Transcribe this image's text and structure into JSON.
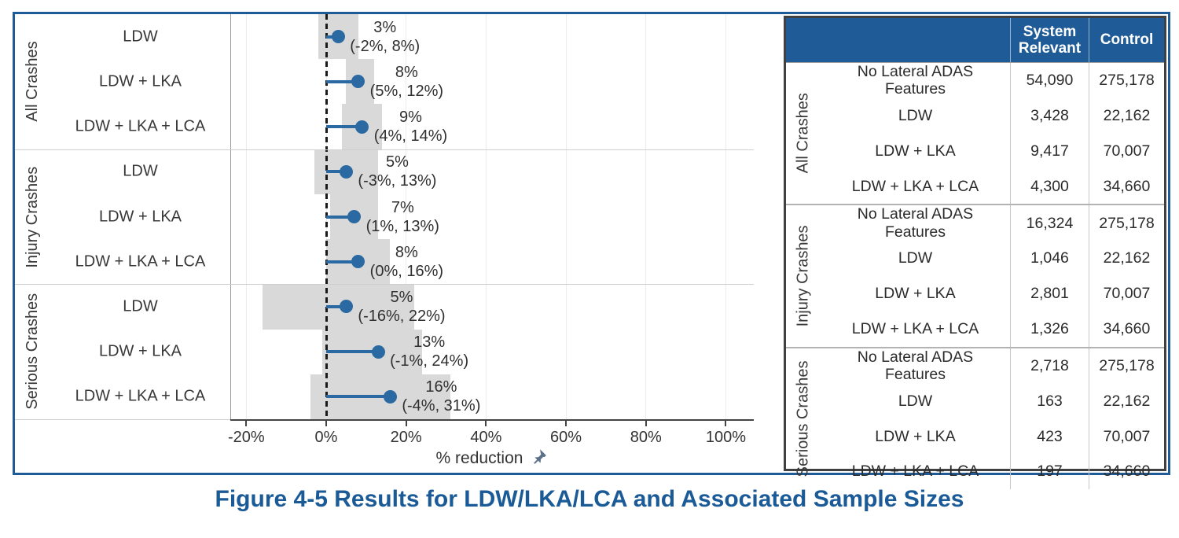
{
  "caption": "Figure 4-5 Results for LDW/LKA/LCA and Associated Sample Sizes",
  "colors": {
    "accent_blue": "#1f5b96",
    "point_blue": "#2a69a1",
    "band_gray": "#d9d9d9",
    "caption_blue": "#1a5a96",
    "pin_slate": "#5c7089"
  },
  "icons": {
    "axis_label_pin": "pushpin-icon"
  },
  "chart_data": {
    "type": "scatter",
    "subtype": "forest-plot-dot-with-ci-bands",
    "xlabel": "% reduction",
    "xlim": [
      -24,
      107
    ],
    "zero_line": 0,
    "grid": "vertical-light",
    "x_ticks": [
      {
        "value": -20,
        "label": "-20%"
      },
      {
        "value": 0,
        "label": "0%"
      },
      {
        "value": 20,
        "label": "20%"
      },
      {
        "value": 40,
        "label": "40%"
      },
      {
        "value": 60,
        "label": "60%"
      },
      {
        "value": 80,
        "label": "80%"
      },
      {
        "value": 100,
        "label": "100%"
      }
    ],
    "groups": [
      {
        "label": "All Crashes",
        "rows": [
          {
            "label": "LDW",
            "estimate": 3,
            "ci": [
              -2,
              8
            ],
            "estimate_label": "3%",
            "ci_label": "(-2%, 8%)"
          },
          {
            "label": "LDW + LKA",
            "estimate": 8,
            "ci": [
              5,
              12
            ],
            "estimate_label": "8%",
            "ci_label": "(5%, 12%)"
          },
          {
            "label": "LDW + LKA + LCA",
            "estimate": 9,
            "ci": [
              4,
              14
            ],
            "estimate_label": "9%",
            "ci_label": "(4%, 14%)"
          }
        ]
      },
      {
        "label": "Injury Crashes",
        "rows": [
          {
            "label": "LDW",
            "estimate": 5,
            "ci": [
              -3,
              13
            ],
            "estimate_label": "5%",
            "ci_label": "(-3%, 13%)"
          },
          {
            "label": "LDW + LKA",
            "estimate": 7,
            "ci": [
              1,
              13
            ],
            "estimate_label": "7%",
            "ci_label": "(1%, 13%)"
          },
          {
            "label": "LDW + LKA + LCA",
            "estimate": 8,
            "ci": [
              0,
              16
            ],
            "estimate_label": "8%",
            "ci_label": "(0%, 16%)"
          }
        ]
      },
      {
        "label": "Serious Crashes",
        "rows": [
          {
            "label": "LDW",
            "estimate": 5,
            "ci": [
              -16,
              22
            ],
            "estimate_label": "5%",
            "ci_label": "(-16%, 22%)"
          },
          {
            "label": "LDW + LKA",
            "estimate": 13,
            "ci": [
              -1,
              24
            ],
            "estimate_label": "13%",
            "ci_label": "(-1%, 24%)"
          },
          {
            "label": "LDW + LKA + LCA",
            "estimate": 16,
            "ci": [
              -4,
              31
            ],
            "estimate_label": "16%",
            "ci_label": "(-4%, 31%)"
          }
        ]
      }
    ]
  },
  "table": {
    "headers": [
      "System Relevant",
      "Control"
    ],
    "groups": [
      {
        "label": "All Crashes",
        "rows": [
          {
            "feature": "No Lateral ADAS Features",
            "system_relevant": "54,090",
            "control": "275,178"
          },
          {
            "feature": "LDW",
            "system_relevant": "3,428",
            "control": "22,162"
          },
          {
            "feature": "LDW + LKA",
            "system_relevant": "9,417",
            "control": "70,007"
          },
          {
            "feature": "LDW + LKA + LCA",
            "system_relevant": "4,300",
            "control": "34,660"
          }
        ]
      },
      {
        "label": "Injury Crashes",
        "rows": [
          {
            "feature": "No Lateral ADAS Features",
            "system_relevant": "16,324",
            "control": "275,178"
          },
          {
            "feature": "LDW",
            "system_relevant": "1,046",
            "control": "22,162"
          },
          {
            "feature": "LDW + LKA",
            "system_relevant": "2,801",
            "control": "70,007"
          },
          {
            "feature": "LDW + LKA + LCA",
            "system_relevant": "1,326",
            "control": "34,660"
          }
        ]
      },
      {
        "label": "Serious Crashes",
        "rows": [
          {
            "feature": "No Lateral ADAS Features",
            "system_relevant": "2,718",
            "control": "275,178"
          },
          {
            "feature": "LDW",
            "system_relevant": "163",
            "control": "22,162"
          },
          {
            "feature": "LDW + LKA",
            "system_relevant": "423",
            "control": "70,007"
          },
          {
            "feature": "LDW + LKA + LCA",
            "system_relevant": "197",
            "control": "34,660"
          }
        ]
      }
    ]
  }
}
